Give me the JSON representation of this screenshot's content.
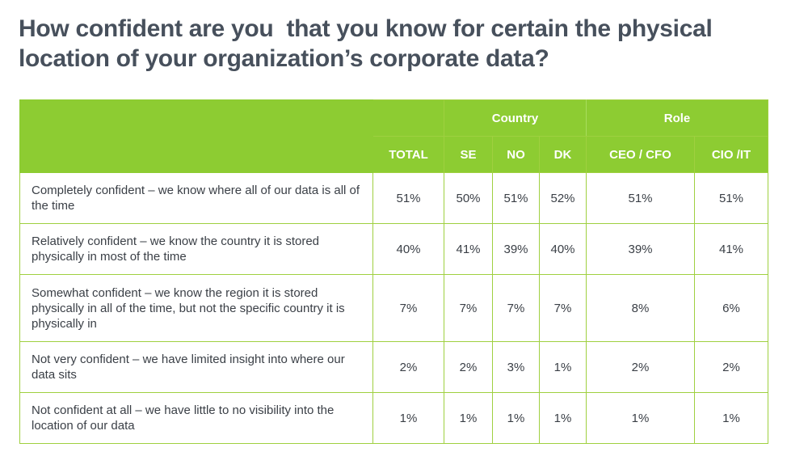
{
  "title": "How confident are you  that you know for certain the physical location of your organization’s corporate data?",
  "header": {
    "group_country": "Country",
    "group_role": "Role",
    "columns": [
      "TOTAL",
      "SE",
      "NO",
      "DK",
      "CEO / CFO",
      "CIO /IT"
    ]
  },
  "rows": [
    {
      "label": "Completely confident – we know where all of our data is all of the time",
      "values": [
        "51%",
        "50%",
        "51%",
        "52%",
        "51%",
        "51%"
      ]
    },
    {
      "label": "Relatively confident – we know the country it is stored physically in most of the time",
      "values": [
        "40%",
        "41%",
        "39%",
        "40%",
        "39%",
        "41%"
      ]
    },
    {
      "label": "Somewhat confident – we know the region it is stored physically in all of the time, but not the specific country it is physically in",
      "values": [
        "7%",
        "7%",
        "7%",
        "7%",
        "8%",
        "6%"
      ]
    },
    {
      "label": "Not very confident – we have limited insight into where our data sits",
      "values": [
        "2%",
        "2%",
        "3%",
        "1%",
        "2%",
        "2%"
      ]
    },
    {
      "label": "Not confident at all – we have little to no visibility into the location of our data",
      "values": [
        "1%",
        "1%",
        "1%",
        "1%",
        "1%",
        "1%"
      ]
    }
  ],
  "colors": {
    "header_green": "#8dcc32",
    "title_gray": "#47505c",
    "border_green": "#9fd040"
  }
}
